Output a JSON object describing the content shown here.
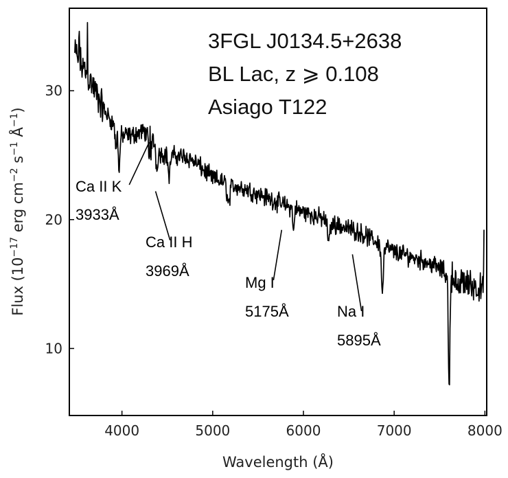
{
  "chart_data": {
    "type": "line",
    "title_lines": [
      "3FGL J0134.5+2638",
      "BL Lac, z ⩾ 0.108",
      "Asiago T122"
    ],
    "xlabel": "Wavelength (Å)",
    "ylabel_parts": {
      "flux": "Flux (10",
      "exp1": "−17",
      "erg": " erg cm",
      "exp2": "−2",
      "s": " s",
      "exp3": "−1",
      "ang": " Å",
      "exp4": "−1",
      "close": ")"
    },
    "xlim": [
      3420,
      8020
    ],
    "ylim": [
      4.8,
      36.4
    ],
    "xticks": [
      4000,
      5000,
      6000,
      7000,
      8000
    ],
    "yticks": [
      10,
      20,
      30
    ],
    "grid": false,
    "continuum": [
      [
        3480,
        33
      ],
      [
        3550,
        32
      ],
      [
        3600,
        31.5
      ],
      [
        3700,
        30
      ],
      [
        3800,
        28.5
      ],
      [
        3900,
        27.5
      ],
      [
        4000,
        26.5
      ],
      [
        4100,
        26.5
      ],
      [
        4200,
        26.8
      ],
      [
        4300,
        26.8
      ],
      [
        4400,
        25.2
      ],
      [
        4500,
        25.0
      ],
      [
        4700,
        24.9
      ],
      [
        4800,
        24.5
      ],
      [
        5000,
        23.2
      ],
      [
        5200,
        22.7
      ],
      [
        5400,
        22.3
      ],
      [
        5600,
        21.7
      ],
      [
        5800,
        21.1
      ],
      [
        6000,
        20.6
      ],
      [
        6200,
        20.1
      ],
      [
        6400,
        19.5
      ],
      [
        6600,
        19.1
      ],
      [
        6800,
        18.3
      ],
      [
        6900,
        17.9
      ],
      [
        7000,
        17.5
      ],
      [
        7100,
        17.3
      ],
      [
        7200,
        17.1
      ],
      [
        7400,
        16.6
      ],
      [
        7550,
        16.0
      ],
      [
        7700,
        15.4
      ],
      [
        7800,
        15.1
      ],
      [
        7900,
        14.8
      ],
      [
        7980,
        14.5
      ]
    ],
    "absorption_features": [
      {
        "center": 3933,
        "depth": 1.8,
        "width": 12
      },
      {
        "center": 3969,
        "depth": 3.0,
        "width": 12
      },
      {
        "center": 4305,
        "depth": 2.4,
        "width": 18
      },
      {
        "center": 4383,
        "depth": 1.5,
        "width": 12
      },
      {
        "center": 4520,
        "depth": 1.8,
        "width": 14
      },
      {
        "center": 5175,
        "depth": 1.5,
        "width": 22
      },
      {
        "center": 5890,
        "depth": 2.0,
        "width": 10
      },
      {
        "center": 6280,
        "depth": 1.5,
        "width": 20
      },
      {
        "center": 6870,
        "depth": 3.5,
        "width": 16
      },
      {
        "center": 7605,
        "depth": 9.0,
        "width": 12
      },
      {
        "center": 7700,
        "depth": 1.2,
        "width": 20
      }
    ],
    "spikes": [
      {
        "center": 3530,
        "height": 3.0,
        "width": 4
      },
      {
        "center": 3620,
        "height": 3.5,
        "width": 4
      },
      {
        "center": 4310,
        "height": 2.5,
        "width": 4
      },
      {
        "center": 7990,
        "height": 6.0,
        "width": 3
      }
    ],
    "noise_amplitude": 0.9,
    "annotations": [
      {
        "name": "ca-ii-k",
        "label": "Ca II K",
        "wavelength_label": "3933Å",
        "line_x": [
          4300,
          4080
        ],
        "line_y": [
          26.0,
          22.7
        ]
      },
      {
        "name": "ca-ii-h",
        "label": "Ca II H",
        "wavelength_label": "3969Å",
        "line_x": [
          4370,
          4530
        ],
        "line_y": [
          22.2,
          18.4
        ]
      },
      {
        "name": "mg-i",
        "label": "Mg I",
        "wavelength_label": "5175Å",
        "line_x": [
          5760,
          5670
        ],
        "line_y": [
          19.2,
          15.3
        ]
      },
      {
        "name": "na-i",
        "label": "Na I",
        "wavelength_label": "5895Å",
        "line_x": [
          6540,
          6640
        ],
        "line_y": [
          17.3,
          12.9
        ]
      }
    ]
  }
}
